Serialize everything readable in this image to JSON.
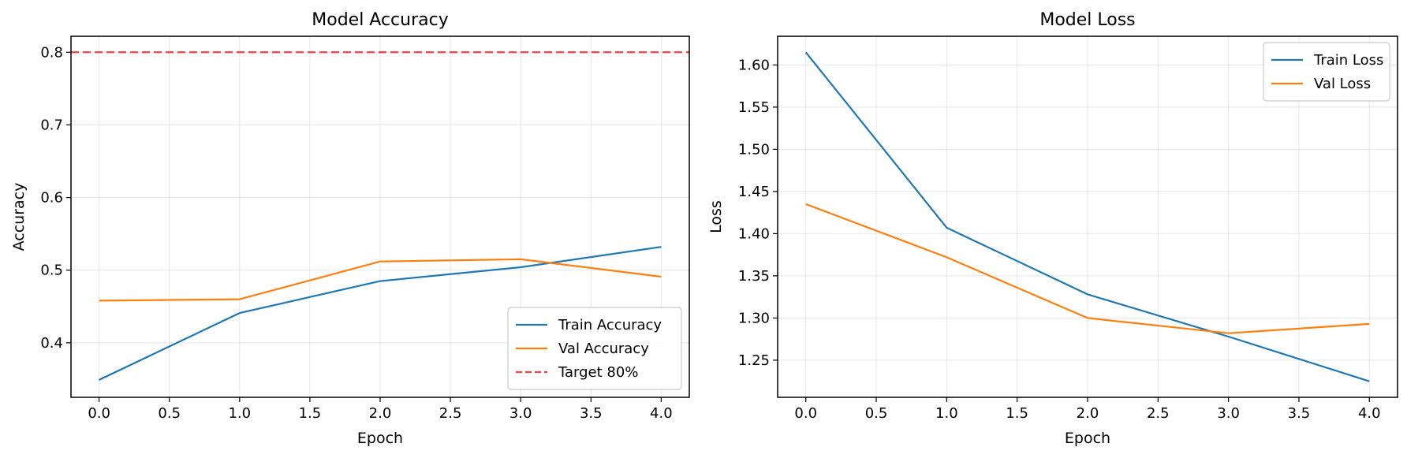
{
  "chart_data": [
    {
      "type": "line",
      "title": "Model Accuracy",
      "xlabel": "Epoch",
      "ylabel": "Accuracy",
      "xlim": [
        -0.2,
        4.2
      ],
      "ylim": [
        0.325,
        0.822
      ],
      "xticks": [
        0.0,
        0.5,
        1.0,
        1.5,
        2.0,
        2.5,
        3.0,
        3.5,
        4.0
      ],
      "xtick_labels": [
        "0.0",
        "0.5",
        "1.0",
        "1.5",
        "2.0",
        "2.5",
        "3.0",
        "3.5",
        "4.0"
      ],
      "yticks": [
        0.4,
        0.5,
        0.6,
        0.7,
        0.8
      ],
      "ytick_labels": [
        "0.4",
        "0.5",
        "0.6",
        "0.7",
        "0.8"
      ],
      "grid": true,
      "legend_position": "lower-right",
      "x": [
        0,
        1,
        2,
        3,
        4
      ],
      "series": [
        {
          "name": "Train Accuracy",
          "color": "#1f77b4",
          "style": "solid",
          "values": [
            0.349,
            0.441,
            0.485,
            0.504,
            0.532
          ]
        },
        {
          "name": "Val Accuracy",
          "color": "#ff7f0e",
          "style": "solid",
          "values": [
            0.458,
            0.46,
            0.512,
            0.515,
            0.491
          ]
        }
      ],
      "hlines": [
        {
          "name": "Target 80%",
          "y": 0.8,
          "color": "#ff0000",
          "style": "dashed"
        }
      ]
    },
    {
      "type": "line",
      "title": "Model Loss",
      "xlabel": "Epoch",
      "ylabel": "Loss",
      "xlim": [
        -0.2,
        4.2
      ],
      "ylim": [
        1.206,
        1.634
      ],
      "xticks": [
        0.0,
        0.5,
        1.0,
        1.5,
        2.0,
        2.5,
        3.0,
        3.5,
        4.0
      ],
      "xtick_labels": [
        "0.0",
        "0.5",
        "1.0",
        "1.5",
        "2.0",
        "2.5",
        "3.0",
        "3.5",
        "4.0"
      ],
      "yticks": [
        1.25,
        1.3,
        1.35,
        1.4,
        1.45,
        1.5,
        1.55,
        1.6
      ],
      "ytick_labels": [
        "1.25",
        "1.30",
        "1.35",
        "1.40",
        "1.45",
        "1.50",
        "1.55",
        "1.60"
      ],
      "grid": true,
      "legend_position": "upper-right",
      "x": [
        0,
        1,
        2,
        3,
        4
      ],
      "series": [
        {
          "name": "Train Loss",
          "color": "#1f77b4",
          "style": "solid",
          "values": [
            1.615,
            1.407,
            1.328,
            1.278,
            1.225
          ]
        },
        {
          "name": "Val Loss",
          "color": "#ff7f0e",
          "style": "solid",
          "values": [
            1.435,
            1.372,
            1.3,
            1.282,
            1.293
          ]
        }
      ],
      "hlines": []
    }
  ]
}
